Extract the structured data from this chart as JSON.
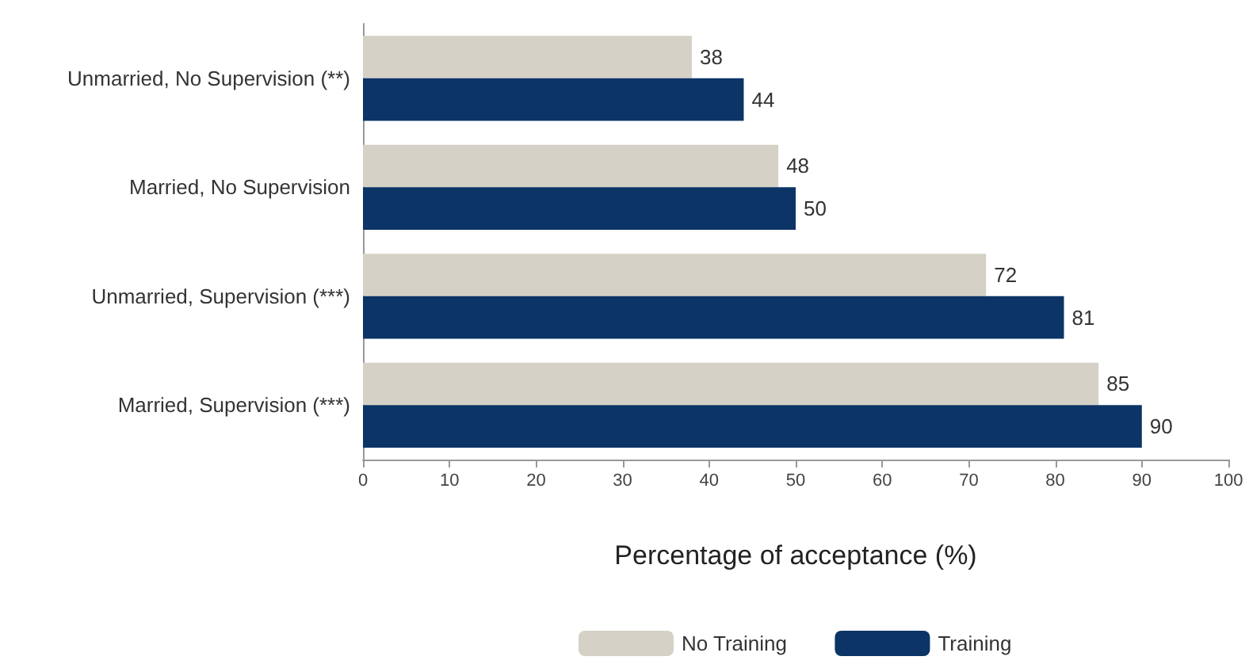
{
  "chart_data": {
    "type": "bar",
    "orientation": "horizontal",
    "categories": [
      "Unmarried, No Supervision (**)",
      "Married, No Supervision",
      "Unmarried, Supervision (***)",
      "Married, Supervision (***)"
    ],
    "series": [
      {
        "name": "No Training",
        "color": "#d5d1c6",
        "values": [
          38,
          48,
          72,
          85
        ]
      },
      {
        "name": "Training",
        "color": "#0c3466",
        "values": [
          44,
          50,
          81,
          90
        ]
      }
    ],
    "xlabel": "Percentage of acceptance (%)",
    "xlim": [
      0,
      100
    ],
    "xticks": [
      0,
      10,
      20,
      30,
      40,
      50,
      60,
      70,
      80,
      90,
      100
    ],
    "data_labels": true,
    "legend": "bottom",
    "grid": false
  }
}
